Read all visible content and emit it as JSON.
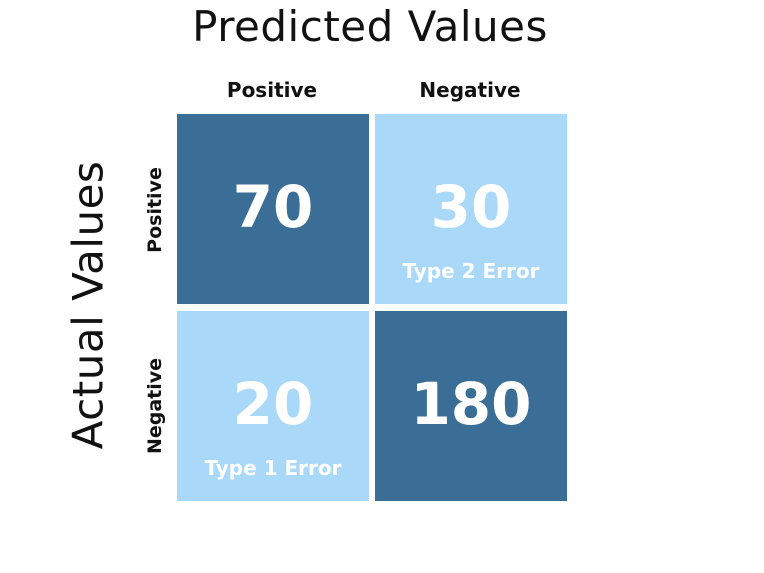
{
  "titles": {
    "predicted": "Predicted Values",
    "actual": "Actual Values"
  },
  "columns": [
    "Positive",
    "Negative"
  ],
  "rows": [
    "Positive",
    "Negative"
  ],
  "cells": [
    {
      "value": "70",
      "note": "",
      "shade": "dark"
    },
    {
      "value": "30",
      "note": "Type 2 Error",
      "shade": "light"
    },
    {
      "value": "20",
      "note": "Type 1 Error",
      "shade": "light"
    },
    {
      "value": "180",
      "note": "",
      "shade": "dark"
    }
  ],
  "colors": {
    "dark_cell": "#3a6e97",
    "light_cell": "#a9d8f8",
    "cell_text": "#ffffff",
    "label_text": "#111111"
  }
}
